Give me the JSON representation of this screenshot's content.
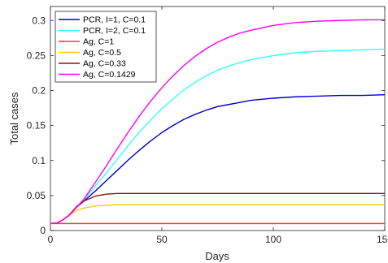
{
  "chart_data": {
    "type": "line",
    "xlabel": "Days",
    "ylabel": "Total cases",
    "xlim": [
      0,
      150
    ],
    "ylim": [
      0,
      0.32
    ],
    "x_ticks": [
      "0",
      "50",
      "100",
      "150"
    ],
    "y_ticks": [
      "0",
      "0.05",
      "0.1",
      "0.15",
      "0.2",
      "0.25",
      "0.3"
    ],
    "grid": false,
    "legend_position": "top-left",
    "x": [
      0,
      3,
      5,
      8,
      10,
      12,
      15,
      20,
      25,
      30,
      35,
      40,
      45,
      50,
      55,
      60,
      65,
      70,
      75,
      80,
      85,
      90,
      100,
      110,
      120,
      130,
      140,
      150
    ],
    "series": [
      {
        "name": "PCR, I=1, C=0.1",
        "color": "#0000cc",
        "values": [
          0.01,
          0.011,
          0.014,
          0.021,
          0.027,
          0.034,
          0.042,
          0.056,
          0.071,
          0.086,
          0.101,
          0.115,
          0.128,
          0.14,
          0.15,
          0.159,
          0.166,
          0.172,
          0.177,
          0.18,
          0.183,
          0.186,
          0.189,
          0.191,
          0.192,
          0.193,
          0.193,
          0.194
        ]
      },
      {
        "name": "PCR, I=2, C=0.1",
        "color": "#33ffff",
        "values": [
          0.01,
          0.011,
          0.014,
          0.021,
          0.027,
          0.034,
          0.044,
          0.063,
          0.082,
          0.102,
          0.122,
          0.141,
          0.158,
          0.174,
          0.188,
          0.201,
          0.212,
          0.221,
          0.229,
          0.235,
          0.24,
          0.244,
          0.25,
          0.254,
          0.256,
          0.257,
          0.258,
          0.259
        ]
      },
      {
        "name": "Ag, C=1",
        "color": "#ff3333",
        "values": [
          0.01,
          0.01,
          0.01,
          0.01,
          0.01,
          0.01,
          0.01,
          0.01,
          0.01,
          0.01,
          0.01,
          0.01,
          0.01,
          0.01,
          0.01,
          0.01,
          0.01,
          0.01,
          0.01,
          0.01,
          0.01,
          0.01,
          0.01,
          0.01,
          0.01,
          0.01,
          0.01,
          0.01
        ]
      },
      {
        "name": "Ag, C=0.5",
        "color": "#ffcc00",
        "values": [
          0.01,
          0.011,
          0.014,
          0.02,
          0.025,
          0.029,
          0.032,
          0.035,
          0.036,
          0.037,
          0.037,
          0.037,
          0.037,
          0.037,
          0.037,
          0.037,
          0.037,
          0.037,
          0.037,
          0.037,
          0.037,
          0.037,
          0.037,
          0.037,
          0.037,
          0.037,
          0.037,
          0.037
        ]
      },
      {
        "name": "Ag, C=0.33",
        "color": "#8b1a00",
        "values": [
          0.01,
          0.011,
          0.014,
          0.021,
          0.028,
          0.035,
          0.042,
          0.049,
          0.052,
          0.053,
          0.053,
          0.053,
          0.053,
          0.053,
          0.053,
          0.053,
          0.053,
          0.053,
          0.053,
          0.053,
          0.053,
          0.053,
          0.053,
          0.053,
          0.053,
          0.053,
          0.053,
          0.053
        ]
      },
      {
        "name": "Ag, C=0.1429",
        "color": "#ff00ff",
        "values": [
          0.01,
          0.011,
          0.014,
          0.021,
          0.027,
          0.034,
          0.045,
          0.068,
          0.092,
          0.117,
          0.141,
          0.164,
          0.185,
          0.204,
          0.221,
          0.236,
          0.249,
          0.26,
          0.269,
          0.276,
          0.282,
          0.286,
          0.293,
          0.297,
          0.299,
          0.3,
          0.301,
          0.301
        ]
      }
    ]
  }
}
